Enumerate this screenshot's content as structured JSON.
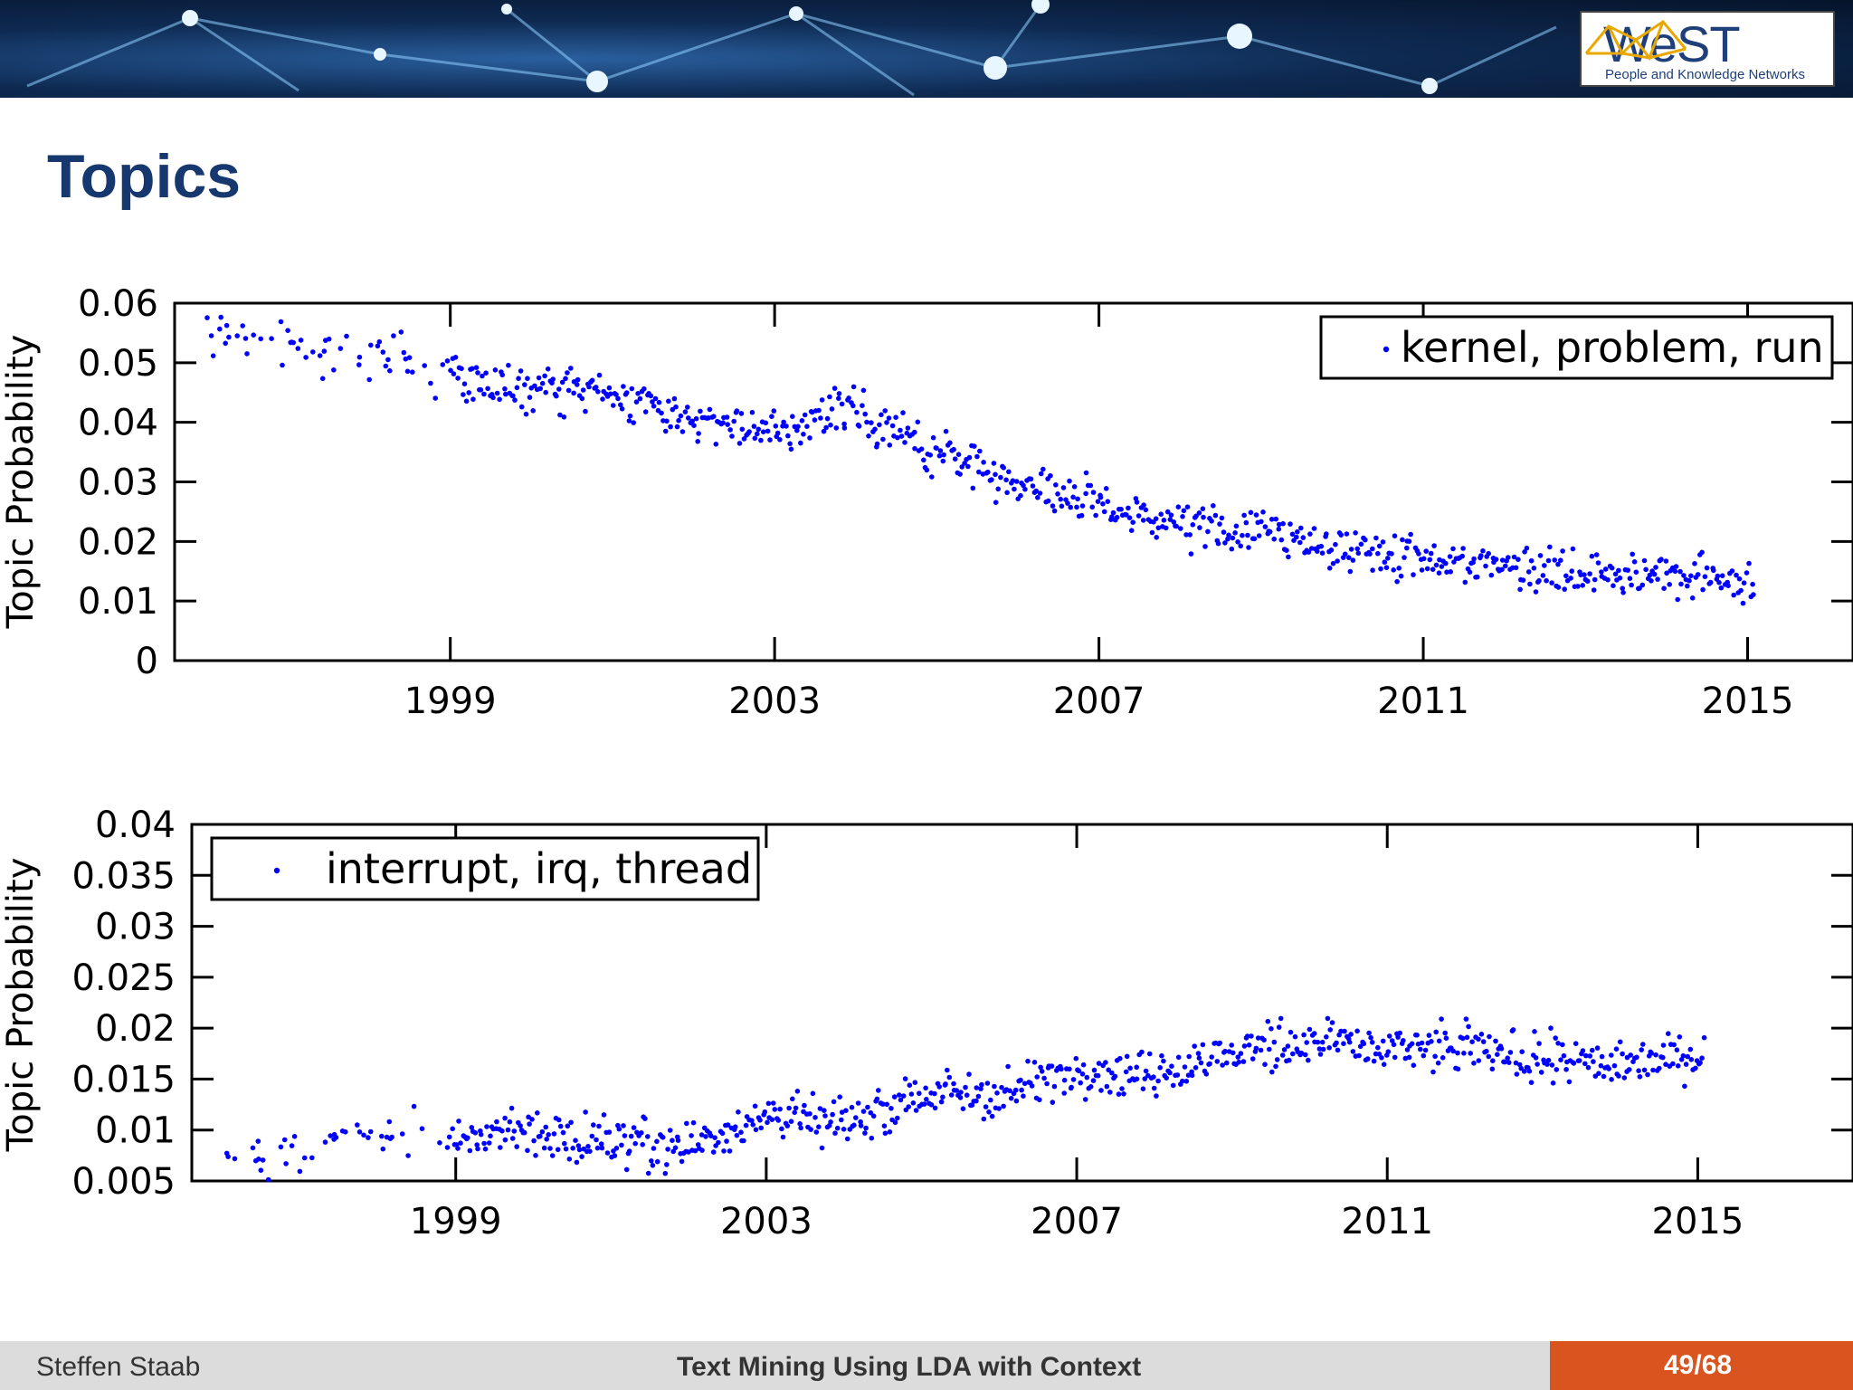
{
  "banner": {
    "logo_text": "WeST",
    "logo_subtitle": "People and Knowledge Networks"
  },
  "slide": {
    "title": "Topics"
  },
  "footer": {
    "author": "Steffen Staab",
    "title": "Text Mining Using LDA with Context",
    "page": "49/68"
  },
  "colors": {
    "points": "#0000ff",
    "title": "#17386e",
    "footer_accent": "#d9541e"
  },
  "chart_data": [
    {
      "type": "scatter",
      "title": "",
      "xlabel": "",
      "ylabel": "Topic Probability",
      "xlim": [
        1995.6,
        2016.3
      ],
      "ylim": [
        0,
        0.06
      ],
      "xticks": [
        1999,
        2003,
        2007,
        2011,
        2015
      ],
      "xtick_labels": [
        "1999",
        "2003",
        "2007",
        "2011",
        "2015"
      ],
      "yticks": [
        0,
        0.01,
        0.02,
        0.03,
        0.04,
        0.05,
        0.06
      ],
      "ytick_labels": [
        "0",
        "0.01",
        "0.02",
        "0.03",
        "0.04",
        "0.05",
        "0.06"
      ],
      "legend": "top-right",
      "grid": false,
      "series": [
        {
          "name": "kernel, problem, run",
          "color": "#0000ff",
          "trend": [
            [
              1996,
              0.055
            ],
            [
              1998.5,
              0.05
            ],
            [
              1999.5,
              0.046
            ],
            [
              2001,
              0.045
            ],
            [
              2002,
              0.041
            ],
            [
              2003,
              0.038
            ],
            [
              2003.9,
              0.043
            ],
            [
              2005,
              0.035
            ],
            [
              2006,
              0.03
            ],
            [
              2007,
              0.026
            ],
            [
              2008,
              0.023
            ],
            [
              2009,
              0.021
            ],
            [
              2010,
              0.019
            ],
            [
              2011,
              0.017
            ],
            [
              2012,
              0.016
            ],
            [
              2013,
              0.015
            ],
            [
              2014,
              0.014
            ],
            [
              2015,
              0.013
            ]
          ]
        }
      ]
    },
    {
      "type": "scatter",
      "title": "",
      "xlabel": "",
      "ylabel": "Topic Probability",
      "xlim": [
        1995.6,
        2017.0
      ],
      "ylim": [
        0.005,
        0.04
      ],
      "xticks": [
        1999,
        2003,
        2007,
        2011,
        2015
      ],
      "xtick_labels": [
        "1999",
        "2003",
        "2007",
        "2011",
        "2015"
      ],
      "yticks": [
        0.005,
        0.01,
        0.015,
        0.02,
        0.025,
        0.03,
        0.035,
        0.04
      ],
      "ytick_labels": [
        "0.005",
        "0.01",
        "0.015",
        "0.02",
        "0.025",
        "0.03",
        "0.035",
        "0.04"
      ],
      "legend": "top-left",
      "grid": false,
      "series": [
        {
          "name": "interrupt, irq, thread",
          "color": "#0000ff",
          "trend": [
            [
              1996,
              0.0075
            ],
            [
              1998,
              0.009
            ],
            [
              2000,
              0.0095
            ],
            [
              2002,
              0.0085
            ],
            [
              2003,
              0.0115
            ],
            [
              2004,
              0.0105
            ],
            [
              2005,
              0.0135
            ],
            [
              2006,
              0.0135
            ],
            [
              2007,
              0.016
            ],
            [
              2008,
              0.0155
            ],
            [
              2009,
              0.0175
            ],
            [
              2010,
              0.019
            ],
            [
              2011,
              0.018
            ],
            [
              2012,
              0.018
            ],
            [
              2013,
              0.017
            ],
            [
              2014,
              0.0165
            ],
            [
              2015,
              0.0175
            ]
          ]
        }
      ]
    }
  ]
}
